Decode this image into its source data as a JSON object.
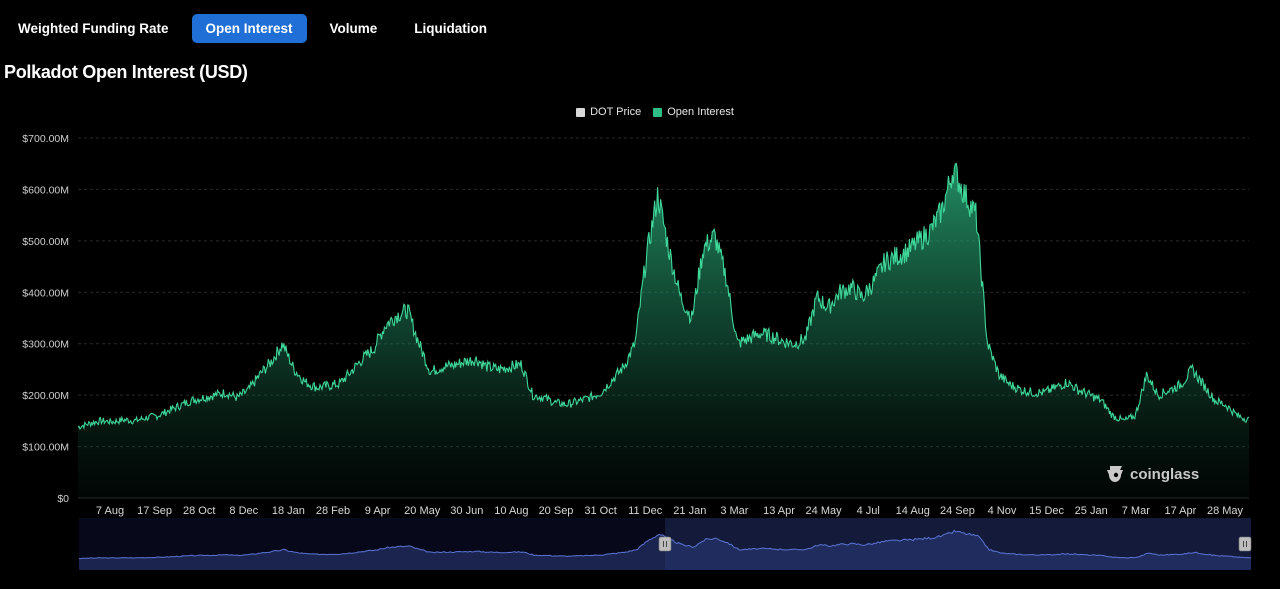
{
  "tabs": [
    {
      "label": "Weighted Funding Rate",
      "active": false
    },
    {
      "label": "Open Interest",
      "active": true
    },
    {
      "label": "Volume",
      "active": false
    },
    {
      "label": "Liquidation",
      "active": false
    }
  ],
  "page_title": "Polkadot Open Interest (USD)",
  "watermark": "coinglass",
  "colors": {
    "accent": "#1f6fd6",
    "open_interest": "#2ebd85",
    "dot_price": "#d9d9d9",
    "navigator": "#3a4a8c"
  },
  "chart_data": {
    "type": "area",
    "title": "Polkadot Open Interest (USD)",
    "legend": [
      {
        "name": "DOT Price",
        "color": "#d9d9d9"
      },
      {
        "name": "Open Interest",
        "color": "#2ebd85"
      }
    ],
    "legend_position": "top-center",
    "y_ticks": [
      "$0",
      "$100.00M",
      "$200.00M",
      "$300.00M",
      "$400.00M",
      "$500.00M",
      "$600.00M",
      "$700.00M"
    ],
    "x_ticks": [
      "7 Aug",
      "17 Sep",
      "28 Oct",
      "8 Dec",
      "18 Jan",
      "28 Feb",
      "9 Apr",
      "20 May",
      "30 Jun",
      "10 Aug",
      "20 Sep",
      "31 Oct",
      "11 Dec",
      "21 Jan",
      "3 Mar",
      "13 Apr",
      "24 May",
      "4 Jul",
      "14 Aug",
      "24 Sep",
      "4 Nov",
      "15 Dec",
      "25 Jan",
      "7 Mar",
      "17 Apr",
      "28 May"
    ],
    "ylim": [
      0,
      700
    ],
    "y_unit": "M USD",
    "grid": true,
    "series": [
      {
        "name": "Open Interest",
        "values": [
          138,
          145,
          150,
          148,
          152,
          150,
          156,
          160,
          170,
          180,
          190,
          195,
          200,
          205,
          195,
          210,
          240,
          265,
          300,
          250,
          225,
          215,
          218,
          222,
          245,
          270,
          290,
          335,
          355,
          365,
          300,
          245,
          255,
          258,
          265,
          270,
          255,
          250,
          255,
          260,
          200,
          195,
          185,
          182,
          188,
          195,
          205,
          230,
          255,
          300,
          470,
          590,
          480,
          390,
          350,
          485,
          510,
          430,
          300,
          310,
          320,
          315,
          305,
          300,
          310,
          390,
          370,
          400,
          410,
          390,
          420,
          460,
          470,
          480,
          500,
          520,
          560,
          640,
          590,
          550,
          300,
          240,
          220,
          210,
          205,
          205,
          215,
          225,
          210,
          200,
          190,
          160,
          150,
          160,
          240,
          200,
          210,
          220,
          250,
          220,
          190,
          180,
          160,
          152
        ],
        "x_start": "7 Aug",
        "x_end": "28 May",
        "x_positions": [
          0,
          1,
          2,
          3,
          4,
          5,
          6,
          7,
          8,
          9,
          10,
          11,
          12,
          13,
          14,
          15,
          16,
          17,
          18,
          19,
          20,
          21,
          22,
          23,
          24,
          25,
          26,
          27,
          28,
          29,
          30,
          31,
          32,
          33,
          34,
          35,
          36,
          37,
          38,
          39,
          40,
          41,
          42,
          43,
          44,
          45,
          46,
          47,
          48,
          49,
          50,
          51,
          52,
          53,
          54,
          55,
          56,
          57,
          58,
          59,
          60,
          61,
          62,
          63,
          64,
          65,
          66,
          67,
          68,
          69,
          70,
          71,
          72,
          73,
          74,
          75,
          76,
          77,
          78,
          79,
          80,
          81,
          82,
          83,
          84,
          85,
          86,
          87,
          88,
          89,
          90,
          91,
          92,
          93,
          94,
          95,
          96,
          97,
          98,
          99,
          100,
          101,
          102,
          103
        ]
      }
    ],
    "navigator": {
      "values": [
        138,
        145,
        150,
        148,
        152,
        150,
        156,
        160,
        170,
        180,
        190,
        195,
        200,
        205,
        195,
        210,
        240,
        265,
        300,
        250,
        225,
        215,
        218,
        222,
        245,
        270,
        290,
        335,
        355,
        365,
        300,
        245,
        255,
        258,
        265,
        270,
        255,
        250,
        255,
        260,
        200,
        195,
        185,
        182,
        188,
        195,
        205,
        230,
        255,
        300,
        470,
        590,
        480,
        390,
        350,
        485,
        510,
        430,
        300,
        310,
        320,
        315,
        305,
        300,
        310,
        390,
        370,
        400,
        410,
        390,
        420,
        460,
        470,
        480,
        500,
        520,
        560,
        640,
        590,
        550,
        300,
        240,
        220,
        210,
        205,
        205,
        215,
        225,
        210,
        200,
        190,
        160,
        150,
        160,
        240,
        200,
        210,
        220,
        250,
        220,
        190,
        180,
        160,
        152
      ],
      "selected_range": [
        0.5,
        1.0
      ]
    }
  }
}
